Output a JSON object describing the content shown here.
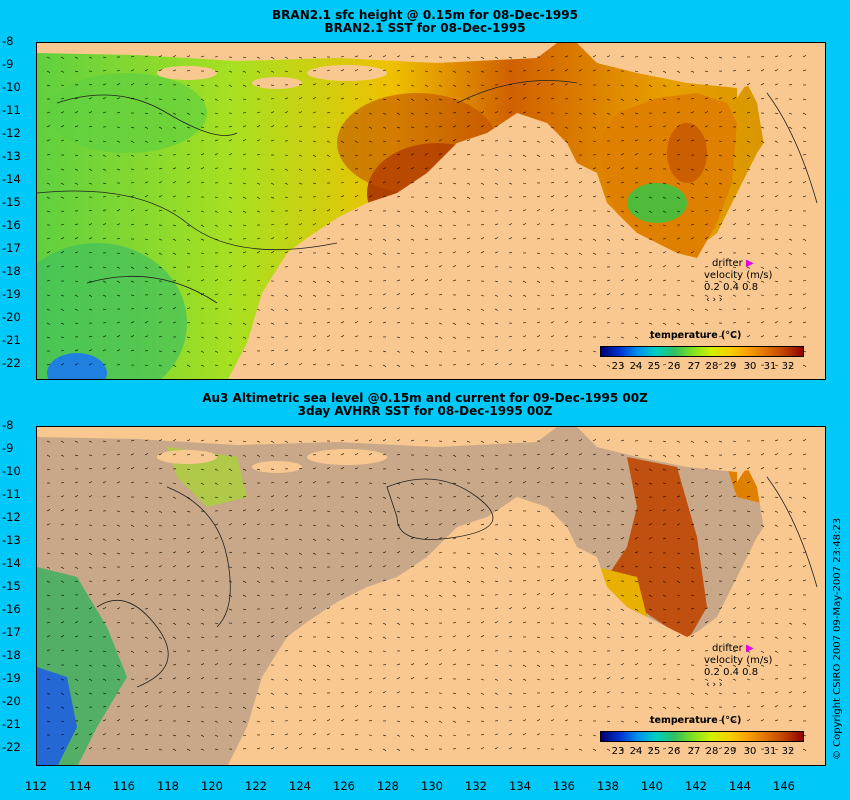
{
  "panel_top": {
    "title_line1": "BRAN2.1  sfc height @ 0.15m for 08-Dec-1995",
    "title_line2": "BRAN2.1  SST for 08-Dec-1995"
  },
  "panel_bottom": {
    "title_line1": "Au3 Altimetric sea level  @0.15m and current for 09-Dec-1995 00Z",
    "title_line2": "3day AVHRR SST for 08-Dec-1995 00Z"
  },
  "y_ticks": [
    "-8",
    "-9",
    "-10",
    "-11",
    "-12",
    "-13",
    "-14",
    "-15",
    "-16",
    "-17",
    "-18",
    "-19",
    "-20",
    "-21",
    "-22"
  ],
  "x_ticks": [
    "112",
    "114",
    "116",
    "118",
    "120",
    "122",
    "124",
    "126",
    "128",
    "130",
    "132",
    "134",
    "136",
    "138",
    "140",
    "142",
    "144",
    "146"
  ],
  "legend": {
    "drifter": "drifter",
    "velocity": "velocity (m/s)",
    "velocity_values": "0.2 0.4 0.8",
    "colorbar_title": "temperature (°C)",
    "colorbar_ticks": [
      "23",
      "24",
      "25",
      "26",
      "27",
      "28",
      "29",
      "30",
      "31",
      "32"
    ],
    "colorbar_range": [
      22,
      33
    ],
    "drifter_color": "#e000e0"
  },
  "colors": {
    "background": "#00c8f8",
    "land": "#f8c890",
    "missing_data": "#c8a888",
    "warm": "#c04000",
    "mid": "#e0e000",
    "cool": "#40c040"
  },
  "copyright": "© Copyright CSIRO 2007   09-May-2007 23:48:23"
}
